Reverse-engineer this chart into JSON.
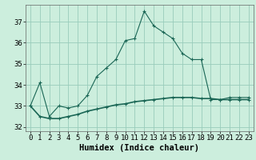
{
  "title": "",
  "xlabel": "Humidex (Indice chaleur)",
  "bg_color": "#cceedd",
  "grid_color": "#99ccbb",
  "line_color": "#1a6655",
  "x_hours": [
    0,
    1,
    2,
    3,
    4,
    5,
    6,
    7,
    8,
    9,
    10,
    11,
    12,
    13,
    14,
    15,
    16,
    17,
    18,
    19,
    20,
    21,
    22,
    23
  ],
  "y_humidex": [
    33.0,
    34.1,
    32.5,
    33.0,
    32.9,
    33.0,
    33.5,
    34.4,
    34.8,
    35.2,
    36.1,
    36.2,
    37.5,
    36.8,
    36.5,
    36.2,
    35.5,
    35.2,
    35.2,
    33.3,
    33.3,
    33.4,
    33.4,
    33.4
  ],
  "y_temp": [
    33.0,
    32.5,
    32.4,
    32.4,
    32.5,
    32.6,
    32.75,
    32.85,
    32.95,
    33.05,
    33.1,
    33.2,
    33.25,
    33.3,
    33.35,
    33.4,
    33.4,
    33.4,
    33.35,
    33.35,
    33.3,
    33.3,
    33.3,
    33.3
  ],
  "ylim": [
    31.8,
    37.8
  ],
  "xlim": [
    -0.5,
    23.5
  ],
  "yticks": [
    32,
    33,
    34,
    35,
    36,
    37
  ],
  "xticks": [
    0,
    1,
    2,
    3,
    4,
    5,
    6,
    7,
    8,
    9,
    10,
    11,
    12,
    13,
    14,
    15,
    16,
    17,
    18,
    19,
    20,
    21,
    22,
    23
  ],
  "tick_fontsize": 6.5,
  "label_fontsize": 7.5
}
